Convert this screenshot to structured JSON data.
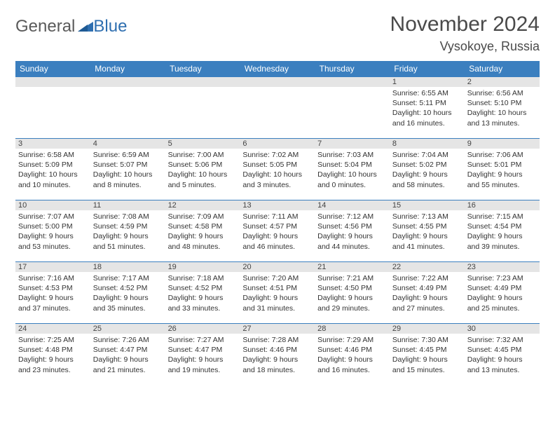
{
  "brand": {
    "part1": "General",
    "part2": "Blue"
  },
  "title": "November 2024",
  "location": "Vysokoye, Russia",
  "colors": {
    "header_bg": "#3b7fbf",
    "header_text": "#ffffff",
    "daynum_bg": "#e5e5e5",
    "border": "#3b7fbf",
    "body_text": "#333333"
  },
  "weekdays": [
    "Sunday",
    "Monday",
    "Tuesday",
    "Wednesday",
    "Thursday",
    "Friday",
    "Saturday"
  ],
  "weeks": [
    [
      null,
      null,
      null,
      null,
      null,
      {
        "n": "1",
        "sunrise": "Sunrise: 6:55 AM",
        "sunset": "Sunset: 5:11 PM",
        "day1": "Daylight: 10 hours",
        "day2": "and 16 minutes."
      },
      {
        "n": "2",
        "sunrise": "Sunrise: 6:56 AM",
        "sunset": "Sunset: 5:10 PM",
        "day1": "Daylight: 10 hours",
        "day2": "and 13 minutes."
      }
    ],
    [
      {
        "n": "3",
        "sunrise": "Sunrise: 6:58 AM",
        "sunset": "Sunset: 5:09 PM",
        "day1": "Daylight: 10 hours",
        "day2": "and 10 minutes."
      },
      {
        "n": "4",
        "sunrise": "Sunrise: 6:59 AM",
        "sunset": "Sunset: 5:07 PM",
        "day1": "Daylight: 10 hours",
        "day2": "and 8 minutes."
      },
      {
        "n": "5",
        "sunrise": "Sunrise: 7:00 AM",
        "sunset": "Sunset: 5:06 PM",
        "day1": "Daylight: 10 hours",
        "day2": "and 5 minutes."
      },
      {
        "n": "6",
        "sunrise": "Sunrise: 7:02 AM",
        "sunset": "Sunset: 5:05 PM",
        "day1": "Daylight: 10 hours",
        "day2": "and 3 minutes."
      },
      {
        "n": "7",
        "sunrise": "Sunrise: 7:03 AM",
        "sunset": "Sunset: 5:04 PM",
        "day1": "Daylight: 10 hours",
        "day2": "and 0 minutes."
      },
      {
        "n": "8",
        "sunrise": "Sunrise: 7:04 AM",
        "sunset": "Sunset: 5:02 PM",
        "day1": "Daylight: 9 hours",
        "day2": "and 58 minutes."
      },
      {
        "n": "9",
        "sunrise": "Sunrise: 7:06 AM",
        "sunset": "Sunset: 5:01 PM",
        "day1": "Daylight: 9 hours",
        "day2": "and 55 minutes."
      }
    ],
    [
      {
        "n": "10",
        "sunrise": "Sunrise: 7:07 AM",
        "sunset": "Sunset: 5:00 PM",
        "day1": "Daylight: 9 hours",
        "day2": "and 53 minutes."
      },
      {
        "n": "11",
        "sunrise": "Sunrise: 7:08 AM",
        "sunset": "Sunset: 4:59 PM",
        "day1": "Daylight: 9 hours",
        "day2": "and 51 minutes."
      },
      {
        "n": "12",
        "sunrise": "Sunrise: 7:09 AM",
        "sunset": "Sunset: 4:58 PM",
        "day1": "Daylight: 9 hours",
        "day2": "and 48 minutes."
      },
      {
        "n": "13",
        "sunrise": "Sunrise: 7:11 AM",
        "sunset": "Sunset: 4:57 PM",
        "day1": "Daylight: 9 hours",
        "day2": "and 46 minutes."
      },
      {
        "n": "14",
        "sunrise": "Sunrise: 7:12 AM",
        "sunset": "Sunset: 4:56 PM",
        "day1": "Daylight: 9 hours",
        "day2": "and 44 minutes."
      },
      {
        "n": "15",
        "sunrise": "Sunrise: 7:13 AM",
        "sunset": "Sunset: 4:55 PM",
        "day1": "Daylight: 9 hours",
        "day2": "and 41 minutes."
      },
      {
        "n": "16",
        "sunrise": "Sunrise: 7:15 AM",
        "sunset": "Sunset: 4:54 PM",
        "day1": "Daylight: 9 hours",
        "day2": "and 39 minutes."
      }
    ],
    [
      {
        "n": "17",
        "sunrise": "Sunrise: 7:16 AM",
        "sunset": "Sunset: 4:53 PM",
        "day1": "Daylight: 9 hours",
        "day2": "and 37 minutes."
      },
      {
        "n": "18",
        "sunrise": "Sunrise: 7:17 AM",
        "sunset": "Sunset: 4:52 PM",
        "day1": "Daylight: 9 hours",
        "day2": "and 35 minutes."
      },
      {
        "n": "19",
        "sunrise": "Sunrise: 7:18 AM",
        "sunset": "Sunset: 4:52 PM",
        "day1": "Daylight: 9 hours",
        "day2": "and 33 minutes."
      },
      {
        "n": "20",
        "sunrise": "Sunrise: 7:20 AM",
        "sunset": "Sunset: 4:51 PM",
        "day1": "Daylight: 9 hours",
        "day2": "and 31 minutes."
      },
      {
        "n": "21",
        "sunrise": "Sunrise: 7:21 AM",
        "sunset": "Sunset: 4:50 PM",
        "day1": "Daylight: 9 hours",
        "day2": "and 29 minutes."
      },
      {
        "n": "22",
        "sunrise": "Sunrise: 7:22 AM",
        "sunset": "Sunset: 4:49 PM",
        "day1": "Daylight: 9 hours",
        "day2": "and 27 minutes."
      },
      {
        "n": "23",
        "sunrise": "Sunrise: 7:23 AM",
        "sunset": "Sunset: 4:49 PM",
        "day1": "Daylight: 9 hours",
        "day2": "and 25 minutes."
      }
    ],
    [
      {
        "n": "24",
        "sunrise": "Sunrise: 7:25 AM",
        "sunset": "Sunset: 4:48 PM",
        "day1": "Daylight: 9 hours",
        "day2": "and 23 minutes."
      },
      {
        "n": "25",
        "sunrise": "Sunrise: 7:26 AM",
        "sunset": "Sunset: 4:47 PM",
        "day1": "Daylight: 9 hours",
        "day2": "and 21 minutes."
      },
      {
        "n": "26",
        "sunrise": "Sunrise: 7:27 AM",
        "sunset": "Sunset: 4:47 PM",
        "day1": "Daylight: 9 hours",
        "day2": "and 19 minutes."
      },
      {
        "n": "27",
        "sunrise": "Sunrise: 7:28 AM",
        "sunset": "Sunset: 4:46 PM",
        "day1": "Daylight: 9 hours",
        "day2": "and 18 minutes."
      },
      {
        "n": "28",
        "sunrise": "Sunrise: 7:29 AM",
        "sunset": "Sunset: 4:46 PM",
        "day1": "Daylight: 9 hours",
        "day2": "and 16 minutes."
      },
      {
        "n": "29",
        "sunrise": "Sunrise: 7:30 AM",
        "sunset": "Sunset: 4:45 PM",
        "day1": "Daylight: 9 hours",
        "day2": "and 15 minutes."
      },
      {
        "n": "30",
        "sunrise": "Sunrise: 7:32 AM",
        "sunset": "Sunset: 4:45 PM",
        "day1": "Daylight: 9 hours",
        "day2": "and 13 minutes."
      }
    ]
  ]
}
